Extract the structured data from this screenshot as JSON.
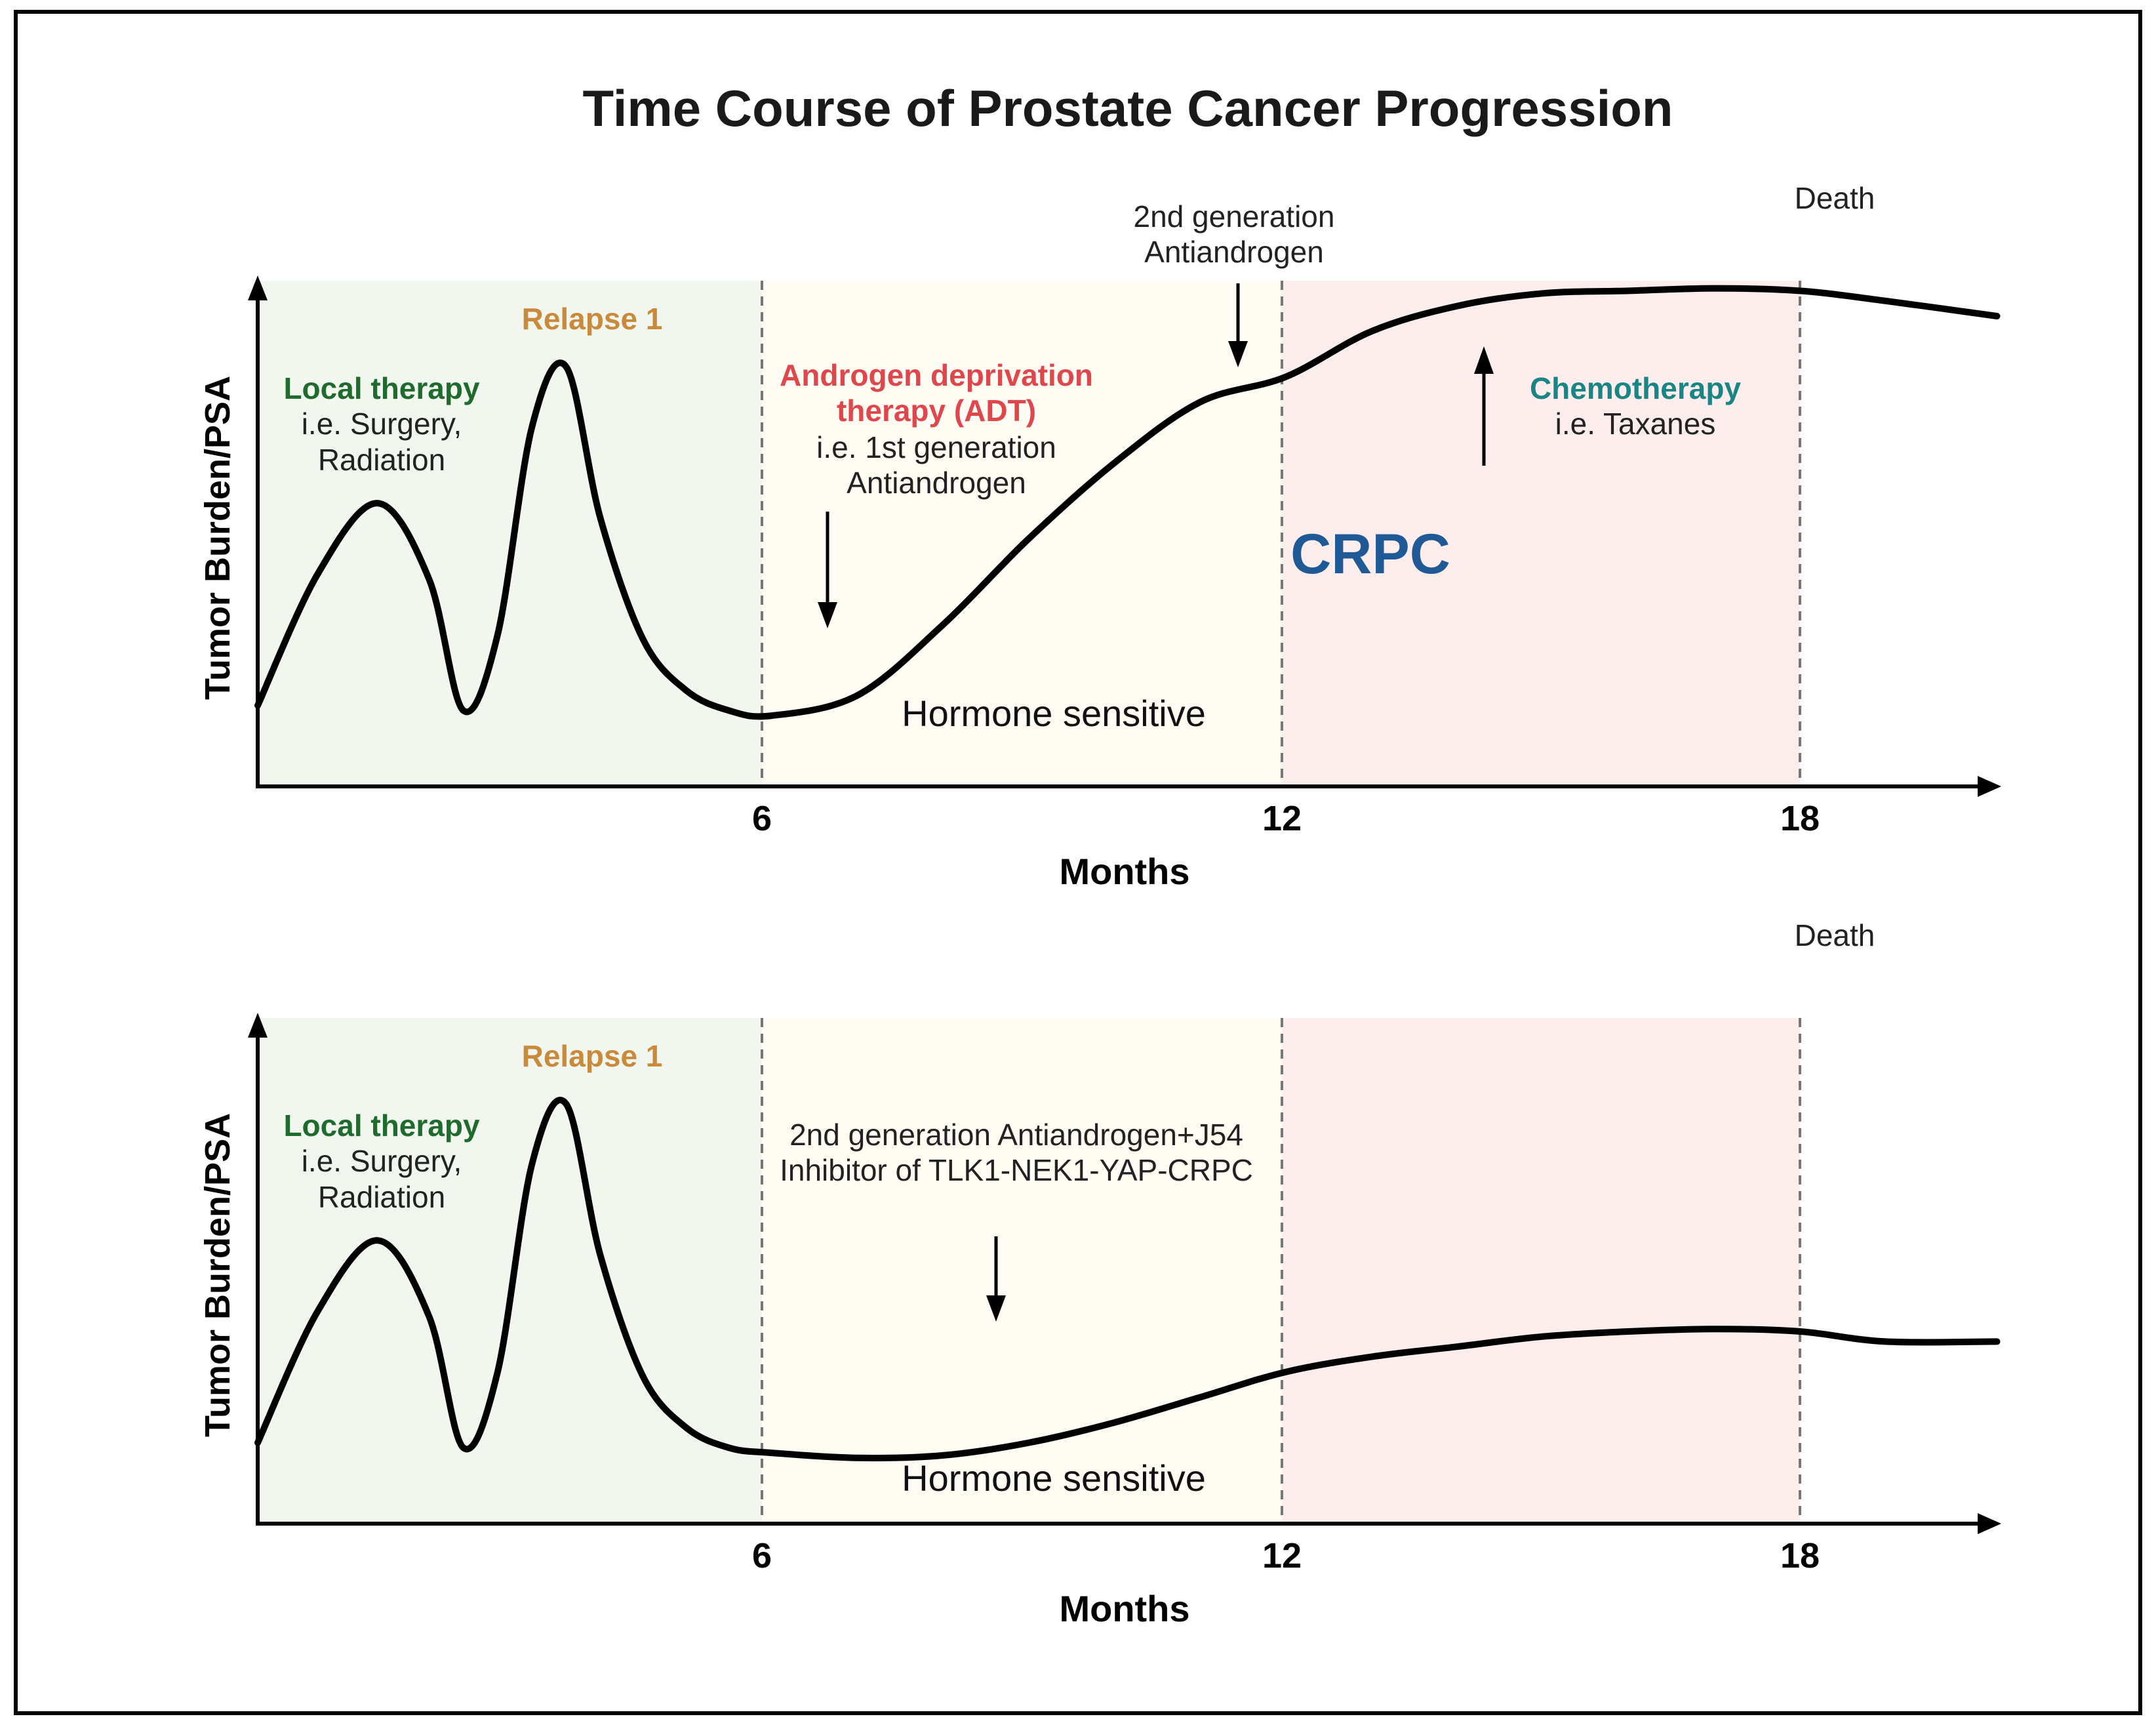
{
  "title": "Time Course of Prostate Cancer Progression",
  "colors": {
    "local_zone": "#f1f7ef",
    "hormone_zone": "#fefcf3",
    "crpc_zone": "#fdeded",
    "local_text": "#1f6b2e",
    "relapse_text": "#c98a3b",
    "adt_text": "#e0474c",
    "chemo_text": "#1a8585",
    "crpc_text": "#1f5a97",
    "curve": "#000000"
  },
  "chart_data": [
    {
      "type": "line",
      "name": "panel-top",
      "xlabel": "Months",
      "ylabel": "Tumor Burden/PSA",
      "xticks": [
        6,
        12,
        18
      ],
      "xlim": [
        0,
        20.3
      ],
      "ylim": [
        0,
        10
      ],
      "zones": [
        {
          "from": 0,
          "to": 6,
          "color": "local"
        },
        {
          "from": 6,
          "to": 12,
          "color": "hormone"
        },
        {
          "from": 12,
          "to": 18,
          "color": "crpc"
        }
      ],
      "curve": {
        "x": [
          0,
          0.7,
          1.4,
          2.0,
          2.4,
          2.8,
          3.2,
          3.6,
          4.0,
          4.5,
          5.0,
          5.5,
          6.0,
          7.0,
          8.0,
          9.0,
          10.0,
          11.0,
          12.0,
          13.0,
          14.0,
          15.0,
          16.0,
          17.0,
          18.0,
          19.0,
          20.3
        ],
        "y": [
          1.6,
          4.2,
          5.6,
          4.1,
          1.5,
          3.0,
          7.1,
          8.3,
          5.3,
          2.9,
          1.9,
          1.5,
          1.4,
          1.8,
          3.2,
          4.9,
          6.4,
          7.6,
          8.1,
          9.0,
          9.5,
          9.75,
          9.8,
          9.85,
          9.8,
          9.6,
          9.3
        ]
      },
      "labels": {
        "local_title": "Local therapy",
        "local_sub1": "i.e. Surgery,",
        "local_sub2": "Radiation",
        "relapse": "Relapse 1",
        "adt_line1": "Androgen deprivation",
        "adt_line2": "therapy (ADT)",
        "adt_sub1": "i.e. 1st generation",
        "adt_sub2": "Antiandrogen",
        "second_gen_line1": "2nd generation",
        "second_gen_line2": "Antiandrogen",
        "chemo_title": "Chemotherapy",
        "chemo_sub": "i.e. Taxanes",
        "crpc": "CRPC",
        "hormone": "Hormone sensitive",
        "death": "Death"
      }
    },
    {
      "type": "line",
      "name": "panel-bottom",
      "xlabel": "Months",
      "ylabel": "Tumor Burden/PSA",
      "xticks": [
        6,
        12,
        18
      ],
      "xlim": [
        0,
        20.3
      ],
      "ylim": [
        0,
        10
      ],
      "zones": [
        {
          "from": 0,
          "to": 6,
          "color": "local"
        },
        {
          "from": 6,
          "to": 12,
          "color": "hormone"
        },
        {
          "from": 12,
          "to": 18,
          "color": "crpc"
        }
      ],
      "curve": {
        "x": [
          0,
          0.7,
          1.4,
          2.0,
          2.4,
          2.8,
          3.2,
          3.6,
          4.0,
          4.5,
          5.0,
          5.5,
          6.0,
          7.0,
          8.0,
          9.0,
          10.0,
          11.0,
          12.0,
          13.0,
          14.0,
          15.0,
          16.0,
          17.0,
          18.0,
          19.0,
          20.3
        ],
        "y": [
          1.6,
          4.2,
          5.6,
          4.1,
          1.5,
          3.0,
          7.1,
          8.3,
          5.3,
          2.9,
          1.9,
          1.5,
          1.4,
          1.3,
          1.35,
          1.6,
          2.0,
          2.5,
          3.0,
          3.3,
          3.5,
          3.7,
          3.8,
          3.85,
          3.8,
          3.6,
          3.6
        ]
      },
      "labels": {
        "local_title": "Local therapy",
        "local_sub1": "i.e. Surgery,",
        "local_sub2": "Radiation",
        "relapse": "Relapse 1",
        "j54_line1": "2nd generation Antiandrogen+J54",
        "j54_line2": "Inhibitor of TLK1-NEK1-YAP-CRPC",
        "hormone": "Hormone sensitive",
        "death": "Death"
      }
    }
  ]
}
